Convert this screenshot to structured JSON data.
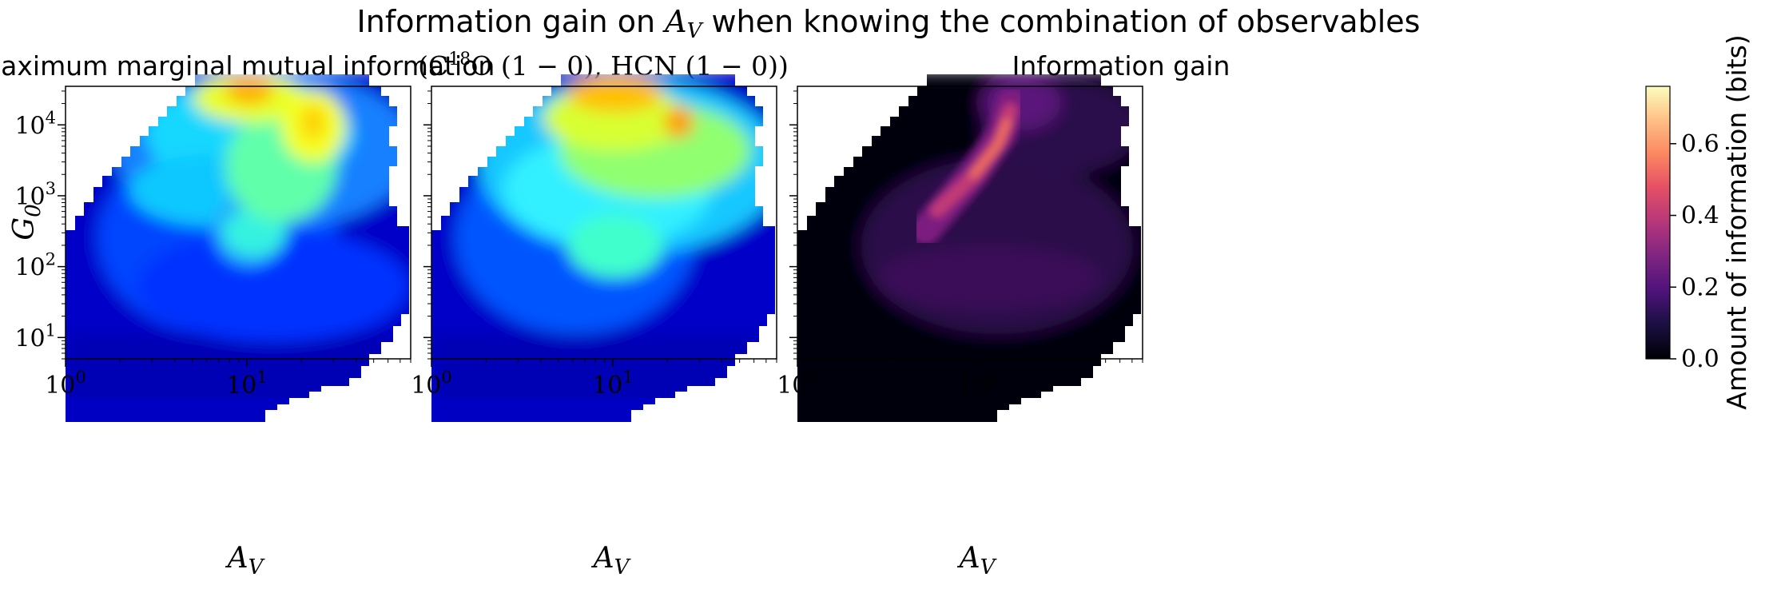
{
  "figure": {
    "title_prefix": "Information gain on ",
    "title_var": "A",
    "title_var_sub": "V",
    "title_suffix": " when knowing the combination of observables"
  },
  "chart_data": [
    {
      "type": "heatmap",
      "panel": "left",
      "title": "Maximum marginal mutual information",
      "xlabel": "A_V",
      "ylabel": "G_0",
      "x_scale": "log",
      "y_scale": "log",
      "xlim": [
        1,
        80
      ],
      "ylim": [
        5,
        35000
      ],
      "x_ticks": [
        "10^0",
        "10^1"
      ],
      "y_ticks": [
        "10^1",
        "10^2",
        "10^3",
        "10^4"
      ],
      "colormap": "jet",
      "features": [
        {
          "A_V": 11,
          "G0": 28000,
          "value": "high (orange)"
        },
        {
          "A_V": 22,
          "G0": 10000,
          "value": "high (yellow-orange)"
        },
        {
          "A_V": 11,
          "G0": 250,
          "value": "medium (cyan)"
        },
        {
          "A_V": 2,
          "G0": 30,
          "value": "low (blue)"
        }
      ]
    },
    {
      "type": "heatmap",
      "panel": "middle",
      "title_parts": [
        "(C",
        "18",
        "O (1 − 0), HCN (1 − 0))"
      ],
      "xlabel": "A_V",
      "x_scale": "log",
      "y_scale": "log",
      "xlim": [
        1,
        80
      ],
      "ylim": [
        5,
        35000
      ],
      "x_ticks": [
        "10^0",
        "10^1"
      ],
      "colormap": "jet",
      "features": [
        {
          "A_V": 11,
          "G0": 28000,
          "value": "high (orange)"
        },
        {
          "A_V": 23,
          "G0": 10000,
          "value": "high (orange)"
        },
        {
          "A_V": 10,
          "G0": 200,
          "value": "medium (cyan-green)"
        },
        {
          "A_V": 2,
          "G0": 30,
          "value": "low (blue)"
        }
      ]
    },
    {
      "type": "heatmap",
      "panel": "right",
      "title": "Information gain",
      "xlabel": "A_V",
      "x_scale": "log",
      "y_scale": "log",
      "xlim": [
        1,
        80
      ],
      "ylim": [
        5,
        35000
      ],
      "x_ticks": [
        "10^0",
        "10^1"
      ],
      "colormap": "magma",
      "features": [
        {
          "A_V": 16,
          "G0": 5000,
          "value": 0.6
        },
        {
          "A_V": 14,
          "G0": 2000,
          "value": 0.5
        },
        {
          "A_V": 10,
          "G0": 800,
          "value": 0.4
        },
        {
          "A_V": 16,
          "G0": 30000,
          "value": 0.35
        },
        {
          "A_V": 12,
          "G0": 80,
          "value": 0.2
        },
        {
          "A_V": 2,
          "G0": 30,
          "value": 0.0
        }
      ]
    }
  ],
  "colorbar": {
    "label": "Amount of information (bits)",
    "range": [
      0,
      0.76
    ],
    "ticks": [
      "0.0",
      "0.2",
      "0.4",
      "0.6"
    ]
  }
}
